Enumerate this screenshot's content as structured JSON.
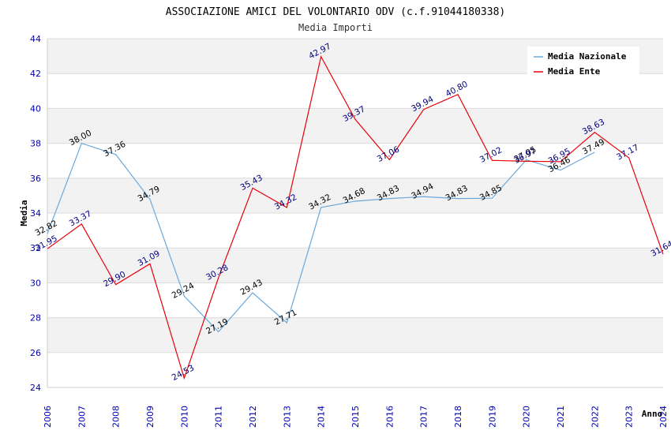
{
  "chart_data": {
    "type": "line",
    "title": "ASSOCIAZIONE AMICI DEL VOLONTARIO ODV (c.f.91044180338)",
    "subtitle": "Media Importi",
    "xlabel": "Anno",
    "ylabel": "Media",
    "ylim": [
      24,
      44
    ],
    "yticks": [
      "24",
      "26",
      "28",
      "30",
      "32",
      "34",
      "36",
      "38",
      "40",
      "42",
      "44"
    ],
    "categories": [
      "2006",
      "2007",
      "2008",
      "2009",
      "2010",
      "2011",
      "2012",
      "2013",
      "2014",
      "2015",
      "2016",
      "2017",
      "2018",
      "2019",
      "2020",
      "2021",
      "2022",
      "2023",
      "2024"
    ],
    "grid": true,
    "legend_position": "top-right",
    "series": [
      {
        "name": "Media Nazionale",
        "color": "#6aa8dc",
        "label_color": "#000000",
        "values": [
          32.82,
          38.0,
          37.36,
          34.79,
          29.24,
          27.19,
          29.43,
          27.71,
          34.32,
          34.68,
          34.83,
          34.94,
          34.83,
          34.85,
          37.05,
          36.46,
          37.49,
          null,
          null
        ],
        "labels": [
          "32.82",
          "38.00",
          "37.36",
          "34.79",
          "29.24",
          "27.19",
          "29.43",
          "27.71",
          "34.32",
          "34.68",
          "34.83",
          "34.94",
          "34.83",
          "34.85",
          "37.05",
          "36.46",
          "37.49",
          null,
          null
        ]
      },
      {
        "name": "Media Ente",
        "color": "#e8000b",
        "label_color": "#000080",
        "values": [
          31.95,
          33.37,
          29.9,
          31.09,
          24.53,
          30.28,
          35.43,
          34.32,
          42.97,
          39.37,
          37.06,
          39.94,
          40.8,
          37.02,
          36.97,
          36.95,
          38.63,
          37.17,
          31.64
        ],
        "labels": [
          "31.95",
          "33.37",
          "29.90",
          "31.09",
          "24.53",
          "30.28",
          "35.43",
          "34.32",
          "42.97",
          "39.37",
          "37.06",
          "39.94",
          "40.80",
          "37.02",
          "36.97",
          "36.95",
          "38.63",
          "37.17",
          "31.64"
        ]
      }
    ]
  }
}
